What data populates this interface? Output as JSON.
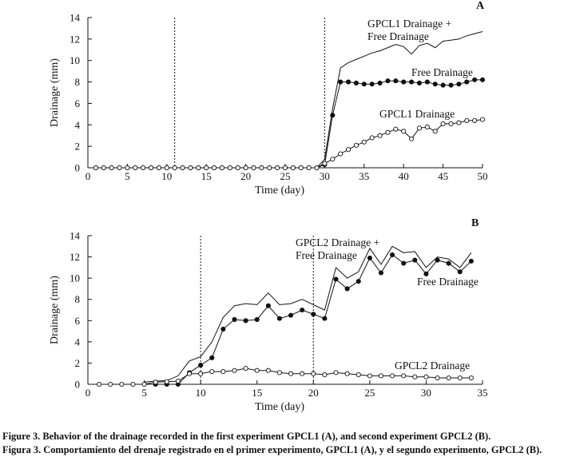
{
  "chart_data": [
    {
      "type": "line",
      "panel_label": "A",
      "xlabel": "Time (day)",
      "ylabel": "Drainage (mm)",
      "xlim": [
        0,
        50
      ],
      "ylim": [
        0,
        14
      ],
      "xticks": [
        0,
        5,
        10,
        15,
        20,
        25,
        30,
        35,
        40,
        45,
        50
      ],
      "yticks": [
        0,
        2,
        4,
        6,
        8,
        10,
        12,
        14
      ],
      "vlines": [
        11,
        30
      ],
      "series": [
        {
          "name": "GPCL1 Drainage + Free Drainage",
          "label_lines": [
            "GPCL1 Drainage +",
            "Free Drainage"
          ],
          "style": "line",
          "x": [
            0,
            1,
            2,
            3,
            4,
            5,
            6,
            7,
            8,
            9,
            10,
            11,
            12,
            13,
            14,
            15,
            16,
            17,
            18,
            19,
            20,
            21,
            22,
            23,
            24,
            25,
            26,
            27,
            28,
            29,
            30,
            31,
            32,
            33,
            34,
            35,
            36,
            37,
            38,
            39,
            40,
            41,
            42,
            43,
            44,
            45,
            46,
            47,
            48,
            49,
            50
          ],
          "y": [
            0,
            0,
            0,
            0,
            0,
            0,
            0,
            0,
            0,
            0,
            0,
            0,
            0,
            0,
            0,
            0,
            0,
            0,
            0,
            0,
            0,
            0,
            0,
            0,
            0,
            0,
            0,
            0,
            0,
            0,
            0.8,
            5.5,
            9.3,
            9.8,
            10.1,
            10.4,
            10.7,
            10.9,
            11.2,
            11.5,
            11.3,
            10.6,
            11.4,
            11.6,
            11.2,
            11.8,
            11.9,
            12.0,
            12.3,
            12.5,
            12.7
          ]
        },
        {
          "name": "Free Drainage",
          "label_lines": [
            "Free Drainage"
          ],
          "style": "filled",
          "x": [
            1,
            2,
            3,
            4,
            5,
            6,
            7,
            8,
            9,
            10,
            11,
            12,
            13,
            14,
            15,
            16,
            17,
            18,
            19,
            20,
            21,
            22,
            23,
            24,
            25,
            26,
            27,
            28,
            29,
            30,
            31,
            32,
            33,
            34,
            35,
            36,
            37,
            38,
            39,
            40,
            41,
            42,
            43,
            44,
            45,
            46,
            47,
            48,
            49,
            50
          ],
          "y": [
            0,
            0,
            0,
            0,
            0,
            0,
            0,
            0,
            0,
            0,
            0,
            0,
            0,
            0,
            0,
            0,
            0,
            0,
            0,
            0,
            0,
            0,
            0,
            0,
            0,
            0,
            0,
            0,
            0,
            0.3,
            4.9,
            8.0,
            8.0,
            7.9,
            7.8,
            7.8,
            7.9,
            8.1,
            8.1,
            8.0,
            8.0,
            7.9,
            8.0,
            7.8,
            7.7,
            7.7,
            7.8,
            8.0,
            8.2,
            8.2
          ]
        },
        {
          "name": "GPCL1 Drainage",
          "label_lines": [
            "GPCL1 Drainage"
          ],
          "style": "open",
          "x": [
            1,
            2,
            3,
            4,
            5,
            6,
            7,
            8,
            9,
            10,
            11,
            12,
            13,
            14,
            15,
            16,
            17,
            18,
            19,
            20,
            21,
            22,
            23,
            24,
            25,
            26,
            27,
            28,
            29,
            30,
            31,
            32,
            33,
            34,
            35,
            36,
            37,
            38,
            39,
            40,
            41,
            42,
            43,
            44,
            45,
            46,
            47,
            48,
            49,
            50
          ],
          "y": [
            0,
            0,
            0,
            0,
            0,
            0,
            0,
            0,
            0,
            0,
            0,
            0,
            0,
            0,
            0,
            0,
            0,
            0,
            0,
            0,
            0,
            0,
            0,
            0,
            0,
            0,
            0,
            0,
            0,
            0.4,
            0.8,
            1.3,
            1.7,
            2.1,
            2.4,
            2.8,
            3.0,
            3.3,
            3.6,
            3.4,
            2.7,
            3.7,
            3.8,
            3.4,
            4.1,
            4.1,
            4.2,
            4.4,
            4.4,
            4.5
          ]
        }
      ]
    },
    {
      "type": "line",
      "panel_label": "B",
      "xlabel": "Time (day)",
      "ylabel": "Drainage (mm)",
      "xlim": [
        0,
        35
      ],
      "ylim": [
        0,
        14
      ],
      "xticks": [
        0,
        5,
        10,
        15,
        20,
        25,
        30,
        35
      ],
      "yticks": [
        0,
        2,
        4,
        6,
        8,
        10,
        12,
        14
      ],
      "vlines": [
        10,
        20
      ],
      "series": [
        {
          "name": "GPCL2 Drainage + Free Drainage",
          "label_lines": [
            "GPCL2 Drainage +",
            "Free Drainage"
          ],
          "style": "line",
          "x": [
            5,
            6,
            7,
            8,
            9,
            10,
            11,
            12,
            13,
            14,
            15,
            16,
            17,
            18,
            19,
            20,
            21,
            22,
            23,
            24,
            25,
            26,
            27,
            28,
            29,
            30,
            31,
            32,
            33,
            34
          ],
          "y": [
            0.2,
            0.3,
            0.35,
            0.8,
            2.2,
            2.6,
            4.0,
            6.3,
            7.4,
            7.6,
            7.5,
            8.6,
            7.5,
            7.6,
            8.0,
            7.5,
            7.0,
            11.0,
            10.0,
            10.6,
            12.8,
            11.3,
            13.0,
            12.4,
            12.5,
            11.0,
            12.0,
            11.8,
            11.0,
            12.4
          ]
        },
        {
          "name": "Free Drainage",
          "label_lines": [
            "Free Drainage"
          ],
          "style": "filled",
          "x": [
            6,
            7,
            8,
            9,
            10,
            11,
            12,
            13,
            14,
            15,
            16,
            17,
            18,
            19,
            20,
            21,
            22,
            23,
            24,
            25,
            26,
            27,
            28,
            29,
            30,
            31,
            32,
            33,
            34
          ],
          "y": [
            0,
            0,
            0,
            1.1,
            1.8,
            2.5,
            5.2,
            6.1,
            6.0,
            6.1,
            7.4,
            6.2,
            6.5,
            7.0,
            6.6,
            6.2,
            9.9,
            9.0,
            9.7,
            11.9,
            10.5,
            12.2,
            11.4,
            11.7,
            10.4,
            11.7,
            11.4,
            10.6,
            11.6
          ]
        },
        {
          "name": "GPCL2 Drainage",
          "label_lines": [
            "GPCL2 Drainage"
          ],
          "style": "open",
          "x": [
            1,
            2,
            3,
            4,
            5,
            6,
            7,
            8,
            9,
            10,
            11,
            12,
            13,
            14,
            15,
            16,
            17,
            18,
            19,
            20,
            21,
            22,
            23,
            24,
            25,
            26,
            27,
            28,
            29,
            30,
            31,
            32,
            33,
            34
          ],
          "y": [
            0,
            0,
            0,
            0,
            0,
            0.2,
            0.25,
            0.3,
            1.0,
            1.0,
            1.2,
            1.2,
            1.3,
            1.5,
            1.3,
            1.3,
            1.1,
            1.0,
            1.0,
            1.0,
            0.9,
            1.1,
            1.0,
            0.9,
            0.8,
            0.8,
            0.8,
            0.8,
            0.7,
            0.7,
            0.6,
            0.6,
            0.6,
            0.6
          ]
        }
      ]
    }
  ],
  "caption": {
    "line1": "Figure 3. Behavior of the drainage recorded in the first experiment GPCL1 (A), and second experiment  GPCL2 (B).",
    "line2": "Figura 3. Comportamiento del drenaje registrado en el primer experimento, GPCL1 (A), y el segundo experimento, GPCL2 (B)."
  }
}
